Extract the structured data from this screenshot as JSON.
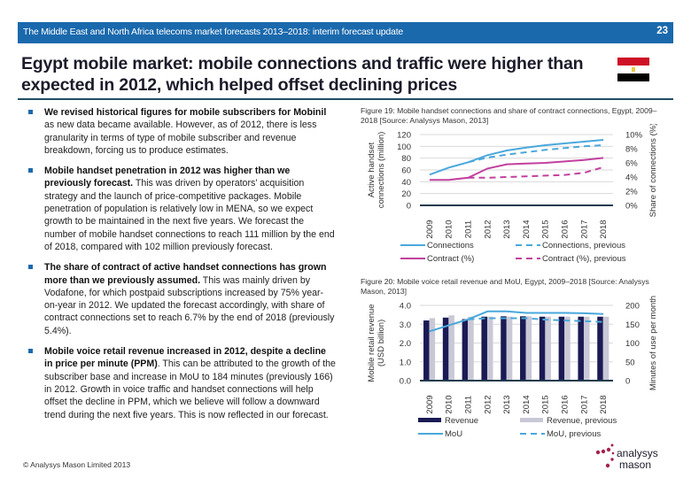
{
  "header": {
    "report_title": "The Middle East and North Africa telecoms market forecasts 2013–2018: interim forecast update",
    "page_number": "23"
  },
  "title": "Egypt mobile market: mobile connections and traffic were higher than expected in 2012, which helped offset declining prices",
  "flag": {
    "icon": "egypt-flag-icon",
    "colors": {
      "red": "#ce1126",
      "white": "#ffffff",
      "black": "#000000",
      "eagle": "#e8c94a"
    }
  },
  "bullets": [
    {
      "bold": "We revised historical figures for mobile subscribers for Mobinil",
      "text": " as new data became available. However, as of 2012, there is less granularity in terms of type of mobile subscriber and revenue breakdown, forcing us to produce estimates."
    },
    {
      "bold": "Mobile handset penetration in 2012 was higher than we previously forecast.",
      "text": " This was driven by operators’ acquisition strategy and the launch of price-competitive packages. Mobile penetration of population is relatively low in MENA, so we expect growth to be maintained in the next five years. We forecast the number of mobile handset connections to reach 111 million by the end of 2018, compared with 102 million previously forecast."
    },
    {
      "bold": "The share of contract of active handset connections has grown more than we previously assumed.",
      "text": " This was mainly driven by Vodafone, for which postpaid subscriptions increased by 75% year-on-year in 2012. We updated the forecast accordingly, with share of contract connections set to reach 6.7% by the end of 2018 (previously 5.4%)."
    },
    {
      "bold": "Mobile voice retail revenue increased in 2012, despite a decline in price per minute (PPM)",
      "text": ". This can be attributed to the growth of the subscriber base and increase in MoU to 184 minutes (previously 166) in 2012. Growth in voice traffic and handset connections will help offset the decline in PPM, which we believe will follow a downward trend during the next five years. This is now reflected in our forecast."
    }
  ],
  "footer": {
    "copyright": "© Analysys Mason Limited 2013",
    "logo_line1": "analysys",
    "logo_line2": "mason"
  },
  "colors": {
    "header_blue": "#1a69ad",
    "connections": "#4aa8dc",
    "contract": "#c2409e",
    "revenue": "#1b1a55",
    "revenue_prev": "#c9c8d6",
    "mou": "#4aa8dc",
    "brand_magenta": "#a3234f"
  },
  "chart_data": [
    {
      "type": "line",
      "caption": "Figure 19: Mobile handset connections and share of contract connections, Egypt, 2009–2018 [Source: Analysys Mason, 2013]",
      "x": [
        "2009",
        "2010",
        "2011",
        "2012",
        "2013",
        "2014",
        "2015",
        "2016",
        "2017",
        "2018"
      ],
      "ylabel": "Active handset connections (million)",
      "ylabel_right": "Share of connections (%)",
      "ylim": [
        0,
        120
      ],
      "yticks": [
        "0",
        "20",
        "40",
        "60",
        "80",
        "100",
        "120"
      ],
      "ylim_right": [
        0,
        10
      ],
      "yticks_right": [
        "0%",
        "2%",
        "4%",
        "6%",
        "8%",
        "10%"
      ],
      "grid": true,
      "legend_position": "bottom",
      "series": [
        {
          "name": "Connections",
          "axis": "left",
          "style": "solid",
          "values": [
            52,
            64,
            73,
            85,
            93,
            98,
            102,
            105,
            108,
            111
          ]
        },
        {
          "name": "Connections, previous",
          "axis": "left",
          "style": "dashed",
          "values": [
            null,
            null,
            73,
            81,
            86,
            90,
            94,
            97,
            100,
            102
          ]
        },
        {
          "name": "Contract (%)",
          "axis": "right",
          "style": "solid",
          "values": [
            3.6,
            3.6,
            3.9,
            5.2,
            5.8,
            5.9,
            6.0,
            6.2,
            6.4,
            6.7
          ]
        },
        {
          "name": "Contract (%), previous",
          "axis": "right",
          "style": "dashed",
          "values": [
            null,
            null,
            3.9,
            3.9,
            4.0,
            4.1,
            4.2,
            4.3,
            4.6,
            5.4
          ]
        }
      ],
      "legend": [
        "Connections",
        "Connections, previous",
        "Contract (%)",
        "Contract (%), previous"
      ]
    },
    {
      "type": "bar",
      "caption": "Figure 20: Mobile voice retail revenue and MoU, Egypt, 2009–2018 [Source: Analysys Mason, 2013]",
      "categories": [
        "2009",
        "2010",
        "2011",
        "2012",
        "2013",
        "2014",
        "2015",
        "2016",
        "2017",
        "2018"
      ],
      "ylabel": "Mobile retail revenue (USD billion)",
      "ylabel_right": "Minutes of use per month",
      "ylim": [
        0,
        4
      ],
      "yticks": [
        "0.0",
        "1.0",
        "2.0",
        "3.0",
        "4.0"
      ],
      "ylim_right": [
        0,
        200
      ],
      "yticks_right": [
        "0",
        "50",
        "100",
        "150",
        "200"
      ],
      "grid": true,
      "legend_position": "bottom",
      "series": [
        {
          "name": "Revenue",
          "kind": "bar",
          "axis": "left",
          "values": [
            3.2,
            3.35,
            3.27,
            3.4,
            3.42,
            3.42,
            3.4,
            3.4,
            3.4,
            3.4
          ]
        },
        {
          "name": "Revenue, previous",
          "kind": "bar",
          "axis": "left",
          "values": [
            3.32,
            3.47,
            3.4,
            3.4,
            3.4,
            3.42,
            3.4,
            3.4,
            3.4,
            3.4
          ]
        },
        {
          "name": "MoU",
          "kind": "line",
          "style": "solid",
          "axis": "right",
          "values": [
            131,
            147,
            163,
            184,
            184,
            180,
            180,
            180,
            179,
            177
          ]
        },
        {
          "name": "MoU, previous",
          "kind": "line",
          "style": "dashed",
          "axis": "right",
          "values": [
            null,
            null,
            163,
            166,
            166,
            166,
            162,
            160,
            158,
            156
          ]
        }
      ],
      "legend": [
        "Revenue",
        "Revenue, previous",
        "MoU",
        "MoU, previous"
      ]
    }
  ]
}
